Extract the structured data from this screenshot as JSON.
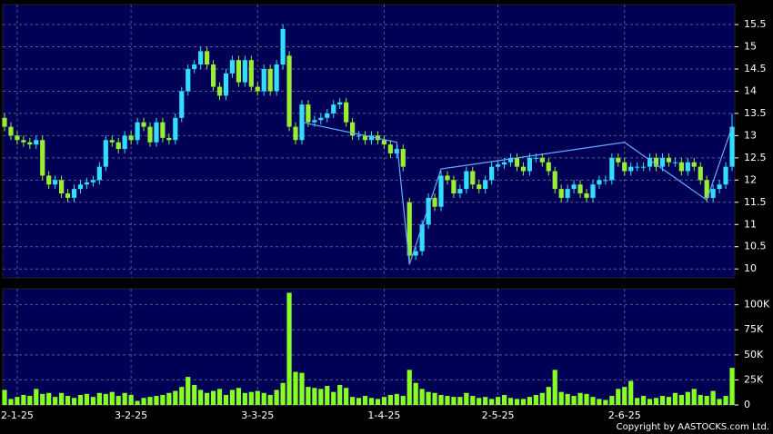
{
  "chart_data": [
    {
      "type": "candlestick",
      "categories": [
        null,
        null,
        "2-1-25",
        null,
        null,
        null,
        null,
        null,
        null,
        null,
        null,
        null,
        null,
        null,
        null,
        null,
        null,
        null,
        null,
        null,
        "3-2-25",
        null,
        null,
        null,
        null,
        null,
        null,
        null,
        null,
        null,
        null,
        null,
        null,
        null,
        null,
        null,
        null,
        null,
        null,
        null,
        "3-3-25",
        null,
        null,
        null,
        null,
        null,
        null,
        null,
        null,
        null,
        null,
        null,
        null,
        null,
        null,
        null,
        null,
        null,
        null,
        null,
        "1-4-25",
        null,
        null,
        null,
        null,
        null,
        null,
        null,
        null,
        null,
        null,
        null,
        null,
        null,
        null,
        null,
        null,
        null,
        "2-5-25",
        null,
        null,
        null,
        null,
        null,
        null,
        null,
        null,
        null,
        null,
        null,
        null,
        null,
        null,
        null,
        null,
        null,
        null,
        null,
        "2-6-25",
        null,
        null,
        null,
        null,
        null,
        null,
        null,
        null,
        null,
        null,
        null,
        null,
        null,
        null,
        null,
        null,
        null
      ],
      "open": [
        13.4,
        13.2,
        13.0,
        12.9,
        12.85,
        12.8,
        12.9,
        12.1,
        11.9,
        12.0,
        11.7,
        11.6,
        11.8,
        11.9,
        11.95,
        12.0,
        12.3,
        12.9,
        12.85,
        12.7,
        13.0,
        12.9,
        13.3,
        13.2,
        12.85,
        13.3,
        12.95,
        12.9,
        13.4,
        14.0,
        14.5,
        14.6,
        14.9,
        14.6,
        14.1,
        13.9,
        14.4,
        14.7,
        14.2,
        14.7,
        14.1,
        14.0,
        14.5,
        14.0,
        14.6,
        14.8,
        13.2,
        12.9,
        13.7,
        13.3,
        13.35,
        13.4,
        13.5,
        13.7,
        13.75,
        13.3,
        13.0,
        13.0,
        12.9,
        13.0,
        12.9,
        12.8,
        12.6,
        12.7,
        11.5,
        10.3,
        10.4,
        11.0,
        11.6,
        11.4,
        12.1,
        12.0,
        11.7,
        11.8,
        12.2,
        11.9,
        11.8,
        12.0,
        12.3,
        12.35,
        12.4,
        12.5,
        12.3,
        12.2,
        12.5,
        12.5,
        12.4,
        12.2,
        11.8,
        11.6,
        11.8,
        11.9,
        11.7,
        11.6,
        11.9,
        12.0,
        12.0,
        12.5,
        12.4,
        12.2,
        12.3,
        12.3,
        12.3,
        12.5,
        12.3,
        12.5,
        12.4,
        12.4,
        12.2,
        12.4,
        12.3,
        12.0,
        11.6,
        11.8,
        11.9,
        12.3
      ],
      "high": [
        13.5,
        13.3,
        13.1,
        13.0,
        12.95,
        13.0,
        13.0,
        12.2,
        12.1,
        12.1,
        11.8,
        11.9,
        12.0,
        12.05,
        12.1,
        12.4,
        13.0,
        13.0,
        12.95,
        13.1,
        13.1,
        13.4,
        13.4,
        13.3,
        13.4,
        13.4,
        13.05,
        13.5,
        14.1,
        14.6,
        14.7,
        15.0,
        15.0,
        14.7,
        14.2,
        14.5,
        14.8,
        14.8,
        14.8,
        14.8,
        14.2,
        14.6,
        14.6,
        14.7,
        15.5,
        14.9,
        13.3,
        13.8,
        13.8,
        13.45,
        13.5,
        13.6,
        13.8,
        13.85,
        13.85,
        13.4,
        13.1,
        13.1,
        13.1,
        13.1,
        13.0,
        12.9,
        12.8,
        12.8,
        11.6,
        10.5,
        11.1,
        11.7,
        11.7,
        12.2,
        12.2,
        12.1,
        11.9,
        12.3,
        12.3,
        12.0,
        12.1,
        12.4,
        12.45,
        12.5,
        12.6,
        12.6,
        12.4,
        12.6,
        12.6,
        12.6,
        12.5,
        12.3,
        11.9,
        11.9,
        12.0,
        12.0,
        11.8,
        12.0,
        12.1,
        12.1,
        12.6,
        12.6,
        12.5,
        12.4,
        12.4,
        12.4,
        12.6,
        12.6,
        12.6,
        12.6,
        12.5,
        12.5,
        12.5,
        12.5,
        12.4,
        12.1,
        11.9,
        12.0,
        12.4,
        13.5
      ],
      "low": [
        13.1,
        12.9,
        12.8,
        12.75,
        12.7,
        12.7,
        12.0,
        11.8,
        11.8,
        11.6,
        11.5,
        11.5,
        11.7,
        11.8,
        11.85,
        11.9,
        12.2,
        12.75,
        12.6,
        12.6,
        12.8,
        12.8,
        13.1,
        12.75,
        12.75,
        12.85,
        12.8,
        12.8,
        13.3,
        13.9,
        14.4,
        14.5,
        14.5,
        14.0,
        13.8,
        13.8,
        14.3,
        14.1,
        14.1,
        14.0,
        13.9,
        13.9,
        13.9,
        13.9,
        14.5,
        13.1,
        12.8,
        12.8,
        13.2,
        13.2,
        13.25,
        13.3,
        13.4,
        13.6,
        13.2,
        12.9,
        12.9,
        12.8,
        12.8,
        12.8,
        12.7,
        12.5,
        12.5,
        12.2,
        10.1,
        10.2,
        10.3,
        10.9,
        11.3,
        11.3,
        11.9,
        11.6,
        11.6,
        11.7,
        11.8,
        11.7,
        11.7,
        11.9,
        12.2,
        12.25,
        12.3,
        12.2,
        12.1,
        12.1,
        12.4,
        12.3,
        12.1,
        11.7,
        11.5,
        11.5,
        11.7,
        11.6,
        11.5,
        11.5,
        11.8,
        11.9,
        11.9,
        12.3,
        12.1,
        12.1,
        12.2,
        12.2,
        12.2,
        12.2,
        12.2,
        12.3,
        12.3,
        12.1,
        12.1,
        12.2,
        11.9,
        11.5,
        11.5,
        11.7,
        11.8,
        12.2
      ],
      "close": [
        13.2,
        13.0,
        12.9,
        12.85,
        12.8,
        12.9,
        12.1,
        11.9,
        12.0,
        11.7,
        11.6,
        11.8,
        11.9,
        11.95,
        12.0,
        12.3,
        12.9,
        12.85,
        12.7,
        13.0,
        12.9,
        13.3,
        13.2,
        12.85,
        13.3,
        12.95,
        12.9,
        13.4,
        14.0,
        14.5,
        14.6,
        14.9,
        14.6,
        14.1,
        13.9,
        14.4,
        14.7,
        14.2,
        14.7,
        14.1,
        14.0,
        14.5,
        14.0,
        14.6,
        15.4,
        13.2,
        12.9,
        13.7,
        13.3,
        13.35,
        13.4,
        13.5,
        13.7,
        13.75,
        13.3,
        13.0,
        13.0,
        12.9,
        13.0,
        12.9,
        12.8,
        12.6,
        12.7,
        12.3,
        10.3,
        10.4,
        11.0,
        11.6,
        11.4,
        12.1,
        12.0,
        11.7,
        11.8,
        12.2,
        11.9,
        11.8,
        12.0,
        12.3,
        12.35,
        12.4,
        12.5,
        12.3,
        12.2,
        12.5,
        12.5,
        12.4,
        12.2,
        11.8,
        11.6,
        11.8,
        11.9,
        11.7,
        11.6,
        11.9,
        12.0,
        12.0,
        12.5,
        12.4,
        12.2,
        12.3,
        12.3,
        12.3,
        12.5,
        12.3,
        12.5,
        12.4,
        12.4,
        12.2,
        12.4,
        12.3,
        12.0,
        11.6,
        11.8,
        11.9,
        12.3,
        13.2
      ],
      "up_color": "#33ddff",
      "down_color": "#99ee33",
      "ylim": [
        9.8,
        15.95
      ],
      "yticks": [
        10,
        10.5,
        11,
        11.5,
        12,
        12.5,
        13,
        13.5,
        14,
        14.5,
        15,
        15.5
      ],
      "grid": true,
      "overlay": {
        "color": "#66aaff",
        "x": [
          47,
          62,
          64,
          69,
          98,
          111,
          115
        ],
        "values": [
          13.3,
          12.85,
          10.1,
          12.25,
          12.85,
          11.55,
          13.2
        ]
      }
    },
    {
      "type": "bar",
      "values": [
        15000,
        6000,
        8000,
        10000,
        9000,
        16000,
        11000,
        12000,
        8000,
        12000,
        9000,
        7000,
        10000,
        11000,
        8000,
        12000,
        11000,
        13000,
        9000,
        12000,
        10000,
        4000,
        7000,
        8000,
        9000,
        10000,
        12000,
        14000,
        18000,
        28000,
        20000,
        15000,
        12000,
        14000,
        16000,
        10000,
        15000,
        17000,
        12000,
        13000,
        14000,
        12000,
        10000,
        15000,
        22000,
        112000,
        33000,
        32000,
        18000,
        17000,
        16000,
        19000,
        13000,
        20000,
        17000,
        8000,
        7000,
        9000,
        7000,
        6000,
        8000,
        10000,
        11000,
        9000,
        35000,
        22000,
        16000,
        13000,
        12000,
        10000,
        9000,
        8000,
        8000,
        12000,
        9000,
        7000,
        8000,
        6000,
        8000,
        10000,
        7000,
        6000,
        6000,
        8000,
        10000,
        12000,
        18000,
        35000,
        13000,
        11000,
        9000,
        12000,
        11000,
        8000,
        6000,
        5000,
        9000,
        16000,
        18000,
        24000,
        7000,
        9000,
        6000,
        7000,
        9000,
        8000,
        12000,
        10000,
        13000,
        16000,
        10000,
        9000,
        14000,
        6000,
        9000,
        37000
      ],
      "color": "#88ff22",
      "ylim": [
        0,
        116000
      ],
      "yticks": [
        0,
        {
          "value": 25000,
          "label": "25K"
        },
        {
          "value": 50000,
          "label": "50K"
        },
        {
          "value": 75000,
          "label": "75K"
        },
        {
          "value": 100000,
          "label": "100K"
        }
      ],
      "grid": true
    }
  ],
  "footer": "Copyright by AASTOCKS.com Ltd."
}
